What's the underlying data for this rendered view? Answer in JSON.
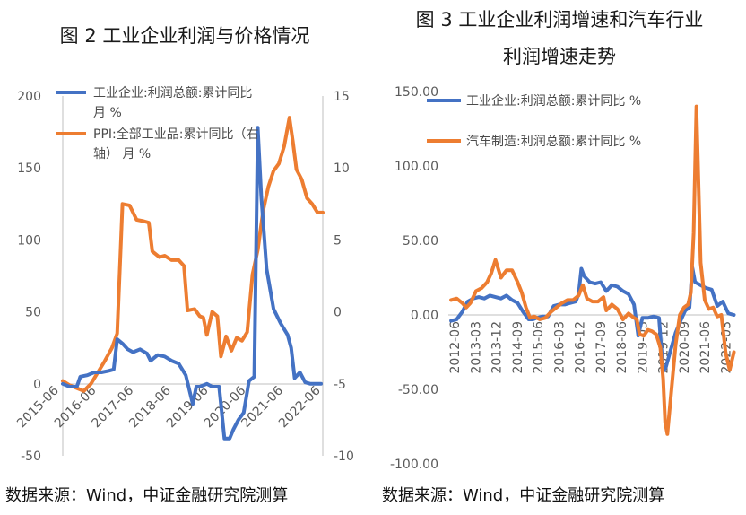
{
  "colors": {
    "blue": "#4472C4",
    "orange": "#ED7D31",
    "axis": "#bfbfbf",
    "text": "#595959"
  },
  "source_left": "数据来源：Wind，中证金融研究院测算",
  "source_right": "数据来源：Wind，中证金融研究院测算",
  "chart_data": [
    {
      "type": "line",
      "title": "图 2  工业企业利润与价格情况",
      "y_left": {
        "ylim": [
          -50,
          200
        ],
        "ticks": [
          "200",
          "150",
          "100",
          "50",
          "0",
          "-50"
        ]
      },
      "y_right": {
        "ylim": [
          -10,
          15
        ],
        "ticks": [
          "15",
          "10",
          "5",
          "0",
          "-5",
          "-10"
        ]
      },
      "x_ticks": [
        "2015-06",
        "2016-06",
        "2017-06",
        "2018-06",
        "2019-06",
        "2020-06",
        "2021-06",
        "2022-06"
      ],
      "grid": false,
      "legend": "top-left",
      "legend_lines": {
        "blue": [
          "工业企业:利润总额:累计同比",
          "月 %"
        ],
        "orange": [
          "PPI:全部工业品:累计同比（右",
          "轴） 月 %"
        ]
      },
      "series": [
        {
          "name": "工业企业:利润总额:累计同比 月 %",
          "axis": "left",
          "color": "blue",
          "x": [
            2015.5,
            2015.7,
            2015.9,
            2016.0,
            2016.2,
            2016.4,
            2016.6,
            2016.8,
            2016.95,
            2017.05,
            2017.2,
            2017.35,
            2017.5,
            2017.7,
            2017.9,
            2018.0,
            2018.2,
            2018.4,
            2018.6,
            2018.8,
            2019.0,
            2019.2,
            2019.3,
            2019.4,
            2019.5,
            2019.6,
            2019.75,
            2019.95,
            2020.1,
            2020.25,
            2020.35,
            2020.5,
            2020.65,
            2020.8,
            2020.95,
            2021.05,
            2021.15,
            2021.3,
            2021.5,
            2021.7,
            2021.9,
            2022.0,
            2022.1,
            2022.25,
            2022.4,
            2022.55,
            2022.7,
            2022.85
          ],
          "values": [
            0,
            -2,
            -2,
            5,
            6,
            8,
            8,
            9,
            10,
            31,
            28,
            24,
            22,
            24,
            21,
            16,
            20,
            19,
            16,
            14,
            6,
            -14,
            -2,
            -2,
            -1,
            0,
            -2,
            -2,
            -38,
            -38,
            -32,
            -25,
            -20,
            2,
            5,
            178,
            130,
            80,
            52,
            42,
            34,
            25,
            4,
            8,
            1,
            0,
            0,
            0
          ]
        },
        {
          "name": "PPI:全部工业品:累计同比（右轴） 月 %",
          "axis": "right",
          "color": "orange",
          "x": [
            2015.5,
            2015.7,
            2015.9,
            2016.1,
            2016.3,
            2016.5,
            2016.7,
            2016.9,
            2017.05,
            2017.2,
            2017.4,
            2017.6,
            2017.8,
            2017.95,
            2018.05,
            2018.25,
            2018.4,
            2018.6,
            2018.8,
            2018.95,
            2019.05,
            2019.25,
            2019.4,
            2019.5,
            2019.6,
            2019.75,
            2019.9,
            2020.0,
            2020.15,
            2020.3,
            2020.45,
            2020.6,
            2020.75,
            2020.9,
            2021.05,
            2021.2,
            2021.35,
            2021.5,
            2021.65,
            2021.8,
            2021.95,
            2022.05,
            2022.15,
            2022.3,
            2022.45,
            2022.6,
            2022.75,
            2022.9
          ],
          "values": [
            -4.8,
            -5.1,
            -5.3,
            -5.5,
            -5.0,
            -4.2,
            -3.4,
            -2.5,
            -1.5,
            7.5,
            7.4,
            6.4,
            6.3,
            6.2,
            4.2,
            3.8,
            3.9,
            3.6,
            3.6,
            3.2,
            0.1,
            0.2,
            -0.3,
            -0.4,
            -1.6,
            0.0,
            -0.3,
            -3.1,
            -1.7,
            -2.7,
            -1.8,
            -2.0,
            -1.4,
            2.6,
            4.3,
            7.0,
            8.7,
            9.8,
            10.3,
            11.5,
            13.5,
            11.8,
            9.9,
            9.2,
            7.9,
            7.5,
            6.9,
            6.9
          ]
        }
      ]
    },
    {
      "type": "line",
      "title_lines": [
        "图 3  工业企业利润增速和汽车行业",
        "利润增速走势"
      ],
      "ylim": [
        -100,
        150
      ],
      "y_ticks": [
        "150.00",
        "100.00",
        "50.00",
        "0.00",
        "-50.00",
        "-100.00"
      ],
      "x_ticks": [
        "2012-06",
        "2013-03",
        "2013-12",
        "2014-09",
        "2015-06",
        "2016-03",
        "2016-12",
        "2017-09",
        "2018-06",
        "2019-03",
        "2019-12",
        "2020-09",
        "2021-06",
        "2022-03"
      ],
      "grid": false,
      "legend": "top-left",
      "series": [
        {
          "name": "工业企业:利润总额:累计同比 %",
          "color": "blue",
          "x": [
            2012.4,
            2012.6,
            2012.8,
            2013.0,
            2013.2,
            2013.4,
            2013.6,
            2013.8,
            2014.0,
            2014.2,
            2014.4,
            2014.6,
            2014.8,
            2015.0,
            2015.2,
            2015.35,
            2015.5,
            2015.7,
            2015.9,
            2016.1,
            2016.3,
            2016.5,
            2016.7,
            2016.9,
            2017.0,
            2017.1,
            2017.2,
            2017.4,
            2017.6,
            2017.8,
            2018.0,
            2018.2,
            2018.4,
            2018.6,
            2018.8,
            2019.0,
            2019.15,
            2019.3,
            2019.5,
            2019.7,
            2019.9,
            2020.05,
            2020.15,
            2020.3,
            2020.5,
            2020.7,
            2020.85,
            2021.0,
            2021.1,
            2021.2,
            2021.4,
            2021.6,
            2021.8,
            2022.0,
            2022.2,
            2022.4,
            2022.6
          ],
          "values": [
            -4,
            -3,
            2,
            9,
            11,
            12,
            11,
            13,
            12,
            11,
            13,
            10,
            8,
            2,
            -3,
            -3,
            -2,
            -1,
            -1,
            6,
            7,
            7,
            8,
            9,
            14,
            31,
            26,
            22,
            21,
            22,
            16,
            20,
            19,
            16,
            14,
            7,
            -14,
            -2,
            -2,
            -1,
            -2,
            -38,
            -35,
            -25,
            -12,
            -3,
            3,
            5,
            32,
            22,
            20,
            18,
            17,
            6,
            9,
            1,
            0
          ]
        },
        {
          "name": "汽车制造:利润总额:累计同比 %",
          "color": "orange",
          "x": [
            2012.4,
            2012.6,
            2012.8,
            2012.95,
            2013.1,
            2013.3,
            2013.5,
            2013.7,
            2013.85,
            2014.0,
            2014.2,
            2014.4,
            2014.6,
            2014.8,
            2014.95,
            2015.1,
            2015.25,
            2015.4,
            2015.6,
            2015.8,
            2016.0,
            2016.2,
            2016.4,
            2016.6,
            2016.8,
            2017.0,
            2017.15,
            2017.3,
            2017.5,
            2017.7,
            2017.9,
            2018.0,
            2018.2,
            2018.4,
            2018.6,
            2018.8,
            2019.0,
            2019.1,
            2019.2,
            2019.35,
            2019.5,
            2019.65,
            2019.8,
            2019.95,
            2020.05,
            2020.12,
            2020.2,
            2020.35,
            2020.5,
            2020.65,
            2020.8,
            2020.95,
            2021.05,
            2021.15,
            2021.25,
            2021.4,
            2021.55,
            2021.7,
            2021.85,
            2022.0,
            2022.15,
            2022.3,
            2022.45,
            2022.6
          ],
          "values": [
            10,
            11,
            8,
            5,
            8,
            16,
            18,
            22,
            28,
            37,
            25,
            30,
            30,
            22,
            15,
            5,
            -2,
            -1,
            -3,
            -2,
            2,
            5,
            8,
            10,
            10,
            13,
            20,
            11,
            9,
            9,
            12,
            3,
            7,
            4,
            -3,
            1,
            -2,
            -3,
            -13,
            -14,
            -10,
            -11,
            -13,
            -22,
            -43,
            -72,
            -80,
            -50,
            -20,
            0,
            5,
            7,
            15,
            55,
            140,
            35,
            10,
            4,
            5,
            -1,
            0,
            -25,
            -37,
            -25
          ]
        }
      ]
    }
  ]
}
